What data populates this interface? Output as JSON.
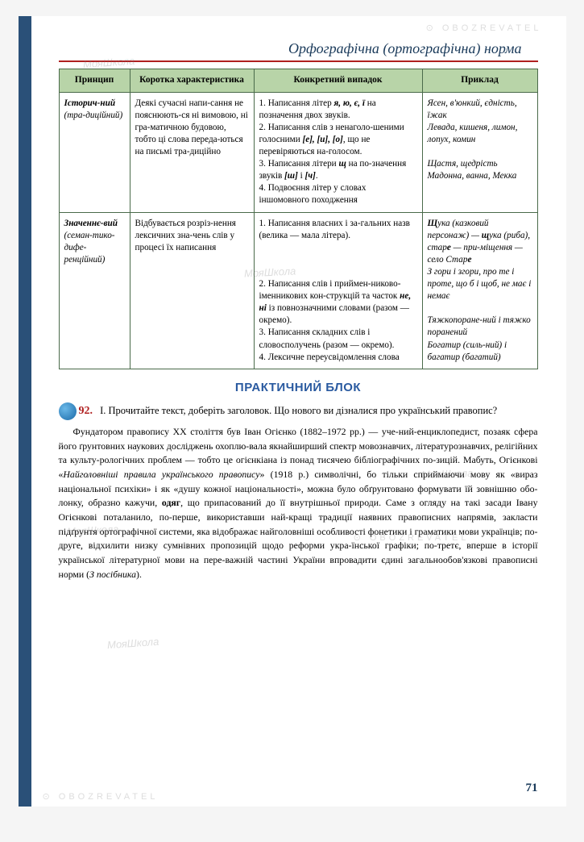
{
  "chapter_title": "Орфографічна (ортографічна) норма",
  "table": {
    "headers": [
      "Принцип",
      "Коротка характеристика",
      "Конкретний випадок",
      "Приклад"
    ],
    "rows": [
      {
        "principle_html": "<b><i>Історич-ний</i></b> (тра-диційний)",
        "char": "Деякі сучасні напи-сання не пояснюють-ся ні вимовою, ні гра-матичною будовою, тобто ці слова переда-ються на письмі тра-диційно",
        "case_html": "1. Написання літер <b><i>я, ю, є, ї</i></b> на позначення двох звуків.<br>2. Написання слів з ненаголо-шеними голосними <b><i>[е], [и], [о]</i></b>, що не перевіряються на-голосом.<br>3. Написання літери <b><i>щ</i></b> на по-значення звуків <b><i>[ш]</i></b> і <b><i>[ч]</i></b>.<br>4. Подвоєння літер у словах іншомовного походження",
        "example_html": "<i>Ясен, в'юнкий, єдність, їжак<br>Левада, кишеня, лимон, лопух, комин<br><br>Щастя, щедрість<br>Мадонна, ванна, Мекка</i>"
      },
      {
        "principle_html": "<b><i>Значеннє-вий</i></b> (семан-тико-дифе-ренційний)",
        "char": "Відбувається розріз-нення лексичних зна-чень слів у процесі їх написання",
        "case_html": "1. Написання власних і за-гальних назв (велика — мала літера).<br><br><br><br>2. Написання слів і приймен-никово-іменникових кон-струкцій та часток <b><i>не, ні</i></b> із повнозначними словами (разом — окремо).<br>3. Написання складних слів і словосполучень (разом — окремо).<br>4. Лексичне переусвідомлення слова",
        "example_html": "<i><b>Щ</b>ука</i> (казковий персонаж) — <i><b>щ</b>ука</i> (риба), <i>стар<b>е</b></i> — при-міщення — село <i>Стар<b>е</b><br>З гори</i> і <i>згори, про те</i> і <i>проте, що б</i> і <i>щоб, не має</i> і <i>немає<br><br>Тяжкопоране-ний</i> і <i>тяжко поранений<br>Богатир</i> (силь-ний) і <i>багатир</i> (багатий)"
      }
    ]
  },
  "section_title": "ПРАКТИЧНИЙ БЛОК",
  "exercise": {
    "number": "92.",
    "part": "I.",
    "prompt": "Прочитайте текст, доберіть заголовок. Що нового ви дізналися про український правопис?",
    "body_html": "Фундатором правопису XX століття був Іван Огієнко (1882–1972 рр.) — уче-ний-енциклопедист, позаяк сфера його ґрунтовних наукових досліджень охоплю-вала якнайширший спектр мовознавчих, літературознавчих, релігійних та культу-рологічних проблем — тобто це огієнкіана із понад тисячею бібліографічних по-зицій. Мабуть, Огієнкові «<i>Найголовніші правила українського правопису</i>» (1918 р.) символічні, бо тільки сприймаючи мову як «вираз національної психіки» і як «душу кожної національності», можна було обґрунтовано формувати їй зовнішню обо-лонку, образно кажучи, <b>одяг</b>, що припасований до її внутрішньої природи. Саме з огляду на такі засади Івану Огієнкові поталанило, по-перше, використавши най-кращі традиції наявних правописних напрямів, закласти підґрунтя ортографічної системи, яка відображає найголовніші особливості фонетики і граматики мови українців; по-друге, відхилити низку сумнівних пропозицій щодо реформи укра-їнської графіки; по-третє, вперше в історії української літературної мови на пере-важній частині України впровадити єдині загальнообов'язкові правописні норми (<i>З посібника</i>)."
  },
  "page_number": "71",
  "watermark_text": "МояШкола",
  "obo_text": "⊙ OBOZREVATEL"
}
